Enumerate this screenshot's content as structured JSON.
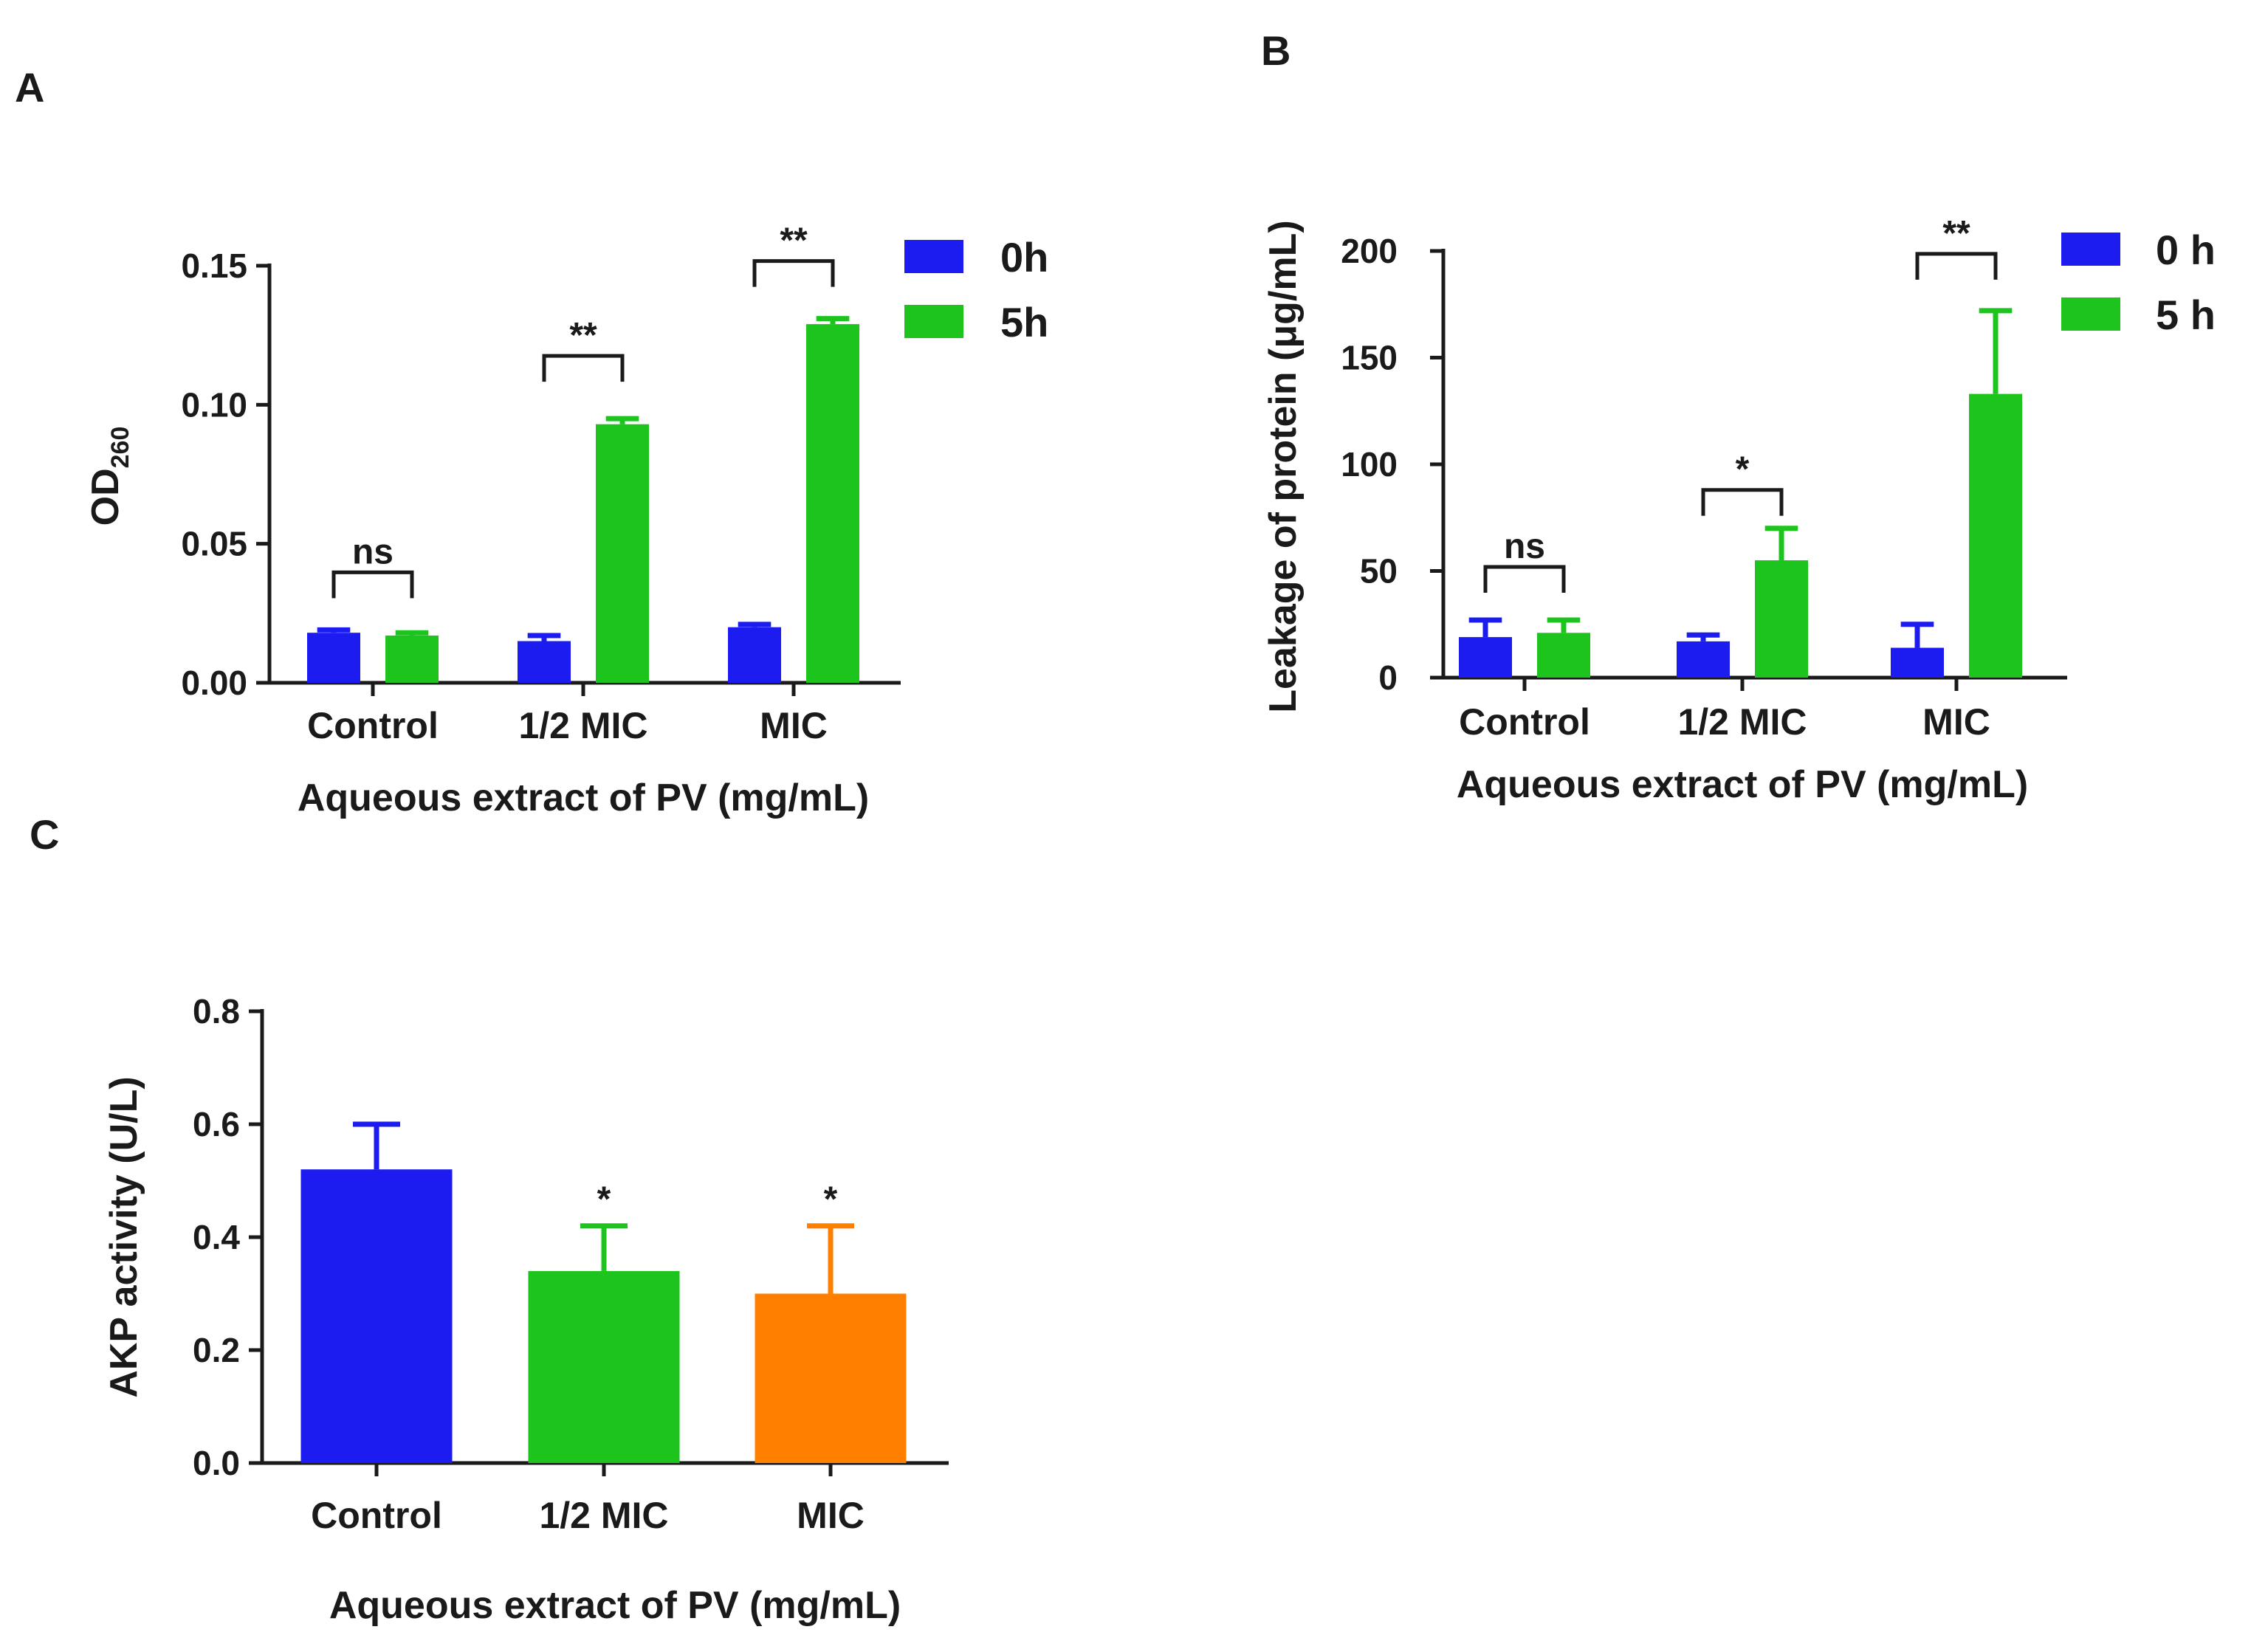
{
  "colors": {
    "blue": "#1c1cf0",
    "green": "#1dc41d",
    "orange": "#ff8000",
    "axis": "#1a1a1a"
  },
  "chart_data": [
    {
      "panel": "A",
      "type": "bar",
      "ylabel_main": "OD",
      "ylabel_sub": "260",
      "xlabel": "Aqueous extract of PV (mg/mL)",
      "categories": [
        "Control",
        "1/2 MIC",
        "MIC"
      ],
      "ylim": [
        0,
        0.15
      ],
      "yticks": [
        "0.00",
        "0.05",
        "0.10",
        "0.15"
      ],
      "series": [
        {
          "name": "0h",
          "color": "#1c1cf0",
          "values": [
            0.018,
            0.015,
            0.02
          ],
          "errors": [
            0.001,
            0.002,
            0.001
          ]
        },
        {
          "name": "5h",
          "color": "#1dc41d",
          "values": [
            0.017,
            0.093,
            0.129
          ],
          "errors": [
            0.001,
            0.002,
            0.002
          ]
        }
      ],
      "significance": [
        "ns",
        "**",
        "**"
      ]
    },
    {
      "panel": "B",
      "type": "bar",
      "ylabel": "Leakage of protein (μg/mL)",
      "xlabel": "Aqueous extract of PV (mg/mL)",
      "categories": [
        "Control",
        "1/2 MIC",
        "MIC"
      ],
      "ylim": [
        0,
        200
      ],
      "yticks": [
        "0",
        "50",
        "100",
        "150",
        "200"
      ],
      "series": [
        {
          "name": "0 h",
          "color": "#1c1cf0",
          "values": [
            19,
            17,
            14
          ],
          "errors": [
            8,
            3,
            11
          ]
        },
        {
          "name": "5 h",
          "color": "#1dc41d",
          "values": [
            21,
            55,
            133
          ],
          "errors": [
            6,
            15,
            39
          ]
        }
      ],
      "significance": [
        "ns",
        "*",
        "**"
      ]
    },
    {
      "panel": "C",
      "type": "bar",
      "ylabel": "AKP activity (U/L)",
      "xlabel": "Aqueous extract of PV (mg/mL)",
      "categories": [
        "Control",
        "1/2 MIC",
        "MIC"
      ],
      "ylim": [
        0,
        0.8
      ],
      "yticks": [
        "0.0",
        "0.2",
        "0.4",
        "0.6",
        "0.8"
      ],
      "series": [
        {
          "name": "AKP activity",
          "values": [
            0.52,
            0.34,
            0.3
          ],
          "errors": [
            0.08,
            0.08,
            0.12
          ],
          "colors": [
            "#1c1cf0",
            "#1dc41d",
            "#ff8000"
          ]
        }
      ],
      "significance": [
        "",
        "*",
        "*"
      ]
    }
  ]
}
